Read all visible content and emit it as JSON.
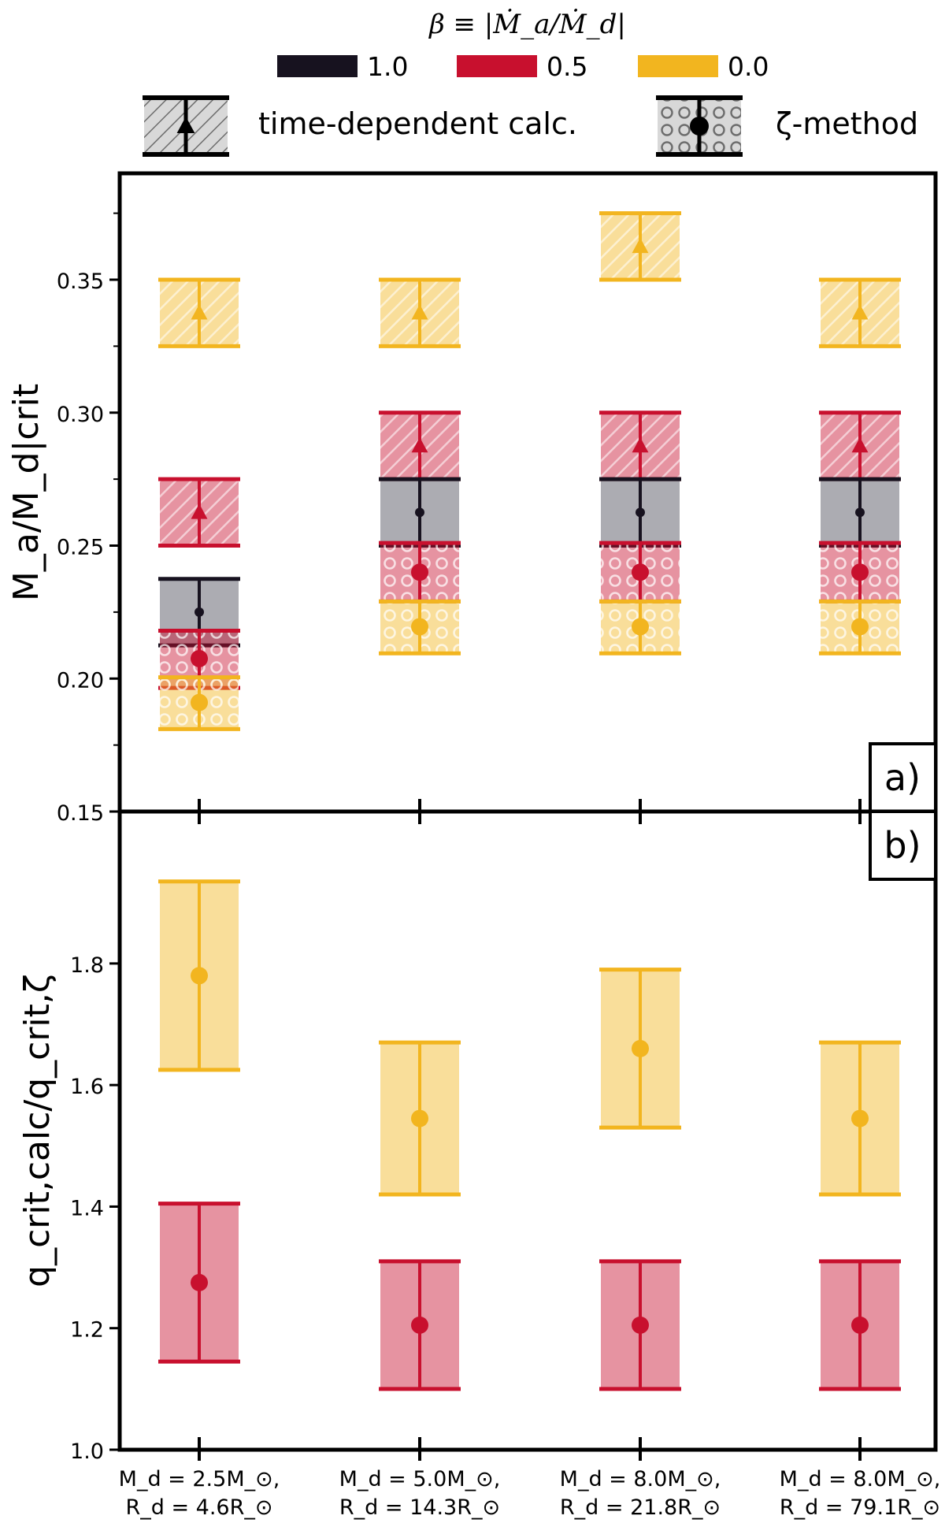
{
  "chart_data": [
    {
      "panel": "a)",
      "type": "range-errorbar",
      "ylabel": "M_a/M_d|crit",
      "ylim": [
        0.15,
        0.39
      ],
      "yticks": [
        0.15,
        0.2,
        0.25,
        0.3,
        0.35
      ],
      "ytick_labels": [
        "0.15",
        "0.20",
        "0.25",
        "0.30",
        "0.35"
      ],
      "minor_ticks_every": 0.025,
      "categories": [
        {
          "line1": "M_d = 2.5M_⊙,",
          "line2": "R_d = 4.6R_⊙"
        },
        {
          "line1": "M_d = 5.0M_⊙,",
          "line2": "R_d = 14.3R_⊙"
        },
        {
          "line1": "M_d = 8.0M_⊙,",
          "line2": "R_d = 21.8R_⊙"
        },
        {
          "line1": "M_d = 8.0M_⊙,",
          "line2": "R_d = 79.1R_⊙"
        }
      ],
      "series": [
        {
          "beta": "0.0",
          "method": "time-dependent calc.",
          "color": "#f2b51f",
          "values": [
            [
              0.325,
              0.3375,
              0.35
            ],
            [
              0.325,
              0.3375,
              0.35
            ],
            [
              0.35,
              0.3625,
              0.375
            ],
            [
              0.325,
              0.3375,
              0.35
            ]
          ]
        },
        {
          "beta": "0.5",
          "method": "time-dependent calc.",
          "color": "#c8102e",
          "values": [
            [
              0.25,
              0.2625,
              0.275
            ],
            [
              0.275,
              0.2875,
              0.3
            ],
            [
              0.275,
              0.2875,
              0.3
            ],
            [
              0.275,
              0.2875,
              0.3
            ]
          ]
        },
        {
          "beta": "1.0",
          "method": "ζ-method",
          "color": "#17121f",
          "values": [
            [
              0.2125,
              0.225,
              0.2375
            ],
            [
              0.25,
              0.2625,
              0.275
            ],
            [
              0.25,
              0.2625,
              0.275
            ],
            [
              0.25,
              0.2625,
              0.275
            ]
          ]
        },
        {
          "beta": "0.5",
          "method": "ζ-method",
          "color": "#c8102e",
          "values": [
            [
              0.1965,
              0.2075,
              0.218
            ],
            [
              0.229,
              0.24,
              0.251
            ],
            [
              0.229,
              0.24,
              0.251
            ],
            [
              0.229,
              0.24,
              0.251
            ]
          ]
        },
        {
          "beta": "0.0",
          "method": "ζ-method",
          "color": "#f2b51f",
          "values": [
            [
              0.181,
              0.191,
              0.2005
            ],
            [
              0.2095,
              0.2195,
              0.229
            ],
            [
              0.2095,
              0.2195,
              0.229
            ],
            [
              0.2095,
              0.2195,
              0.229
            ]
          ]
        }
      ]
    },
    {
      "panel": "b)",
      "type": "range-errorbar",
      "ylabel": "q_crit,calc/q_crit,ζ",
      "ylim": [
        1.0,
        2.05
      ],
      "yticks": [
        1.0,
        1.2,
        1.4,
        1.6,
        1.8
      ],
      "ytick_labels": [
        "1.0",
        "1.2",
        "1.4",
        "1.6",
        "1.8"
      ],
      "series": [
        {
          "beta": "0.0",
          "color": "#f2b51f",
          "values": [
            [
              1.625,
              1.78,
              1.935
            ],
            [
              1.42,
              1.545,
              1.67
            ],
            [
              1.53,
              1.66,
              1.79
            ],
            [
              1.42,
              1.545,
              1.67
            ]
          ]
        },
        {
          "beta": "0.5",
          "color": "#c8102e",
          "values": [
            [
              1.145,
              1.275,
              1.405
            ],
            [
              1.1,
              1.205,
              1.31
            ],
            [
              1.1,
              1.205,
              1.31
            ],
            [
              1.1,
              1.205,
              1.31
            ]
          ]
        }
      ]
    }
  ],
  "legend": {
    "beta_label": "β ≡ |Ṁ_a/Ṁ_d|",
    "beta_items": [
      {
        "label": "1.0",
        "color": "#17121f"
      },
      {
        "label": "0.5",
        "color": "#c8102e"
      },
      {
        "label": "0.0",
        "color": "#f2b51f"
      }
    ],
    "method_items": [
      {
        "label": "time-dependent calc.",
        "marker": "triangle-icon",
        "hatch": "diagonal"
      },
      {
        "label": "ζ-method",
        "marker": "circle-icon",
        "hatch": "circles"
      }
    ]
  }
}
